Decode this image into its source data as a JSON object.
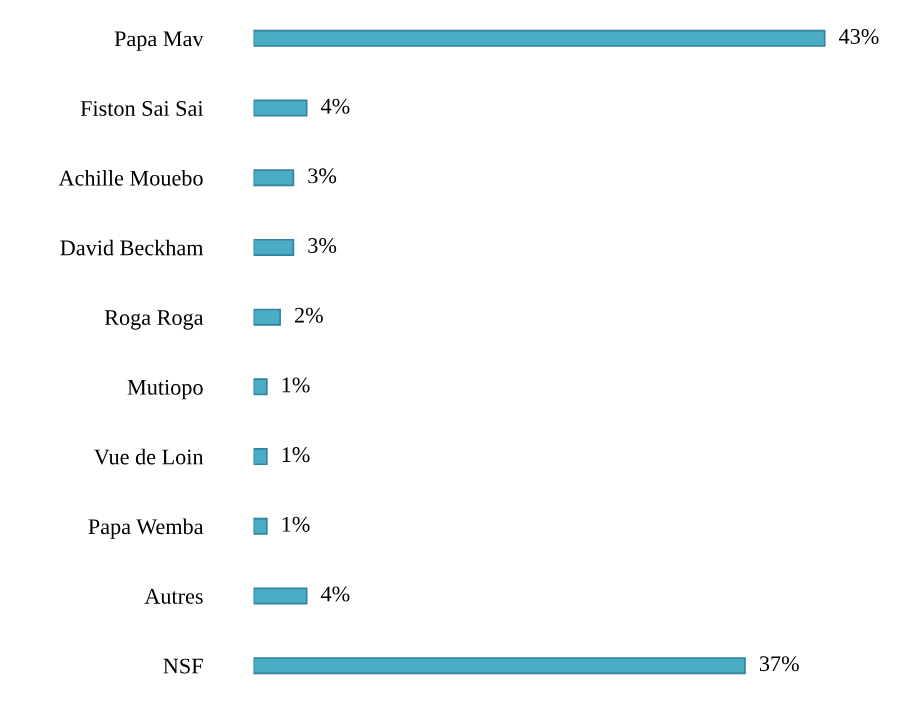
{
  "chart_data": {
    "type": "bar",
    "orientation": "horizontal",
    "categories": [
      "Papa Mav",
      "Fiston Sai Sai",
      "Achille Mouebo",
      "David Beckham",
      "Roga Roga",
      "Mutiopo",
      "Vue de Loin",
      "Papa Wemba",
      "Autres",
      "NSF"
    ],
    "values": [
      43,
      4,
      3,
      3,
      2,
      1,
      1,
      1,
      4,
      37
    ],
    "value_labels": [
      "43%",
      "4%",
      "3%",
      "3%",
      "2%",
      "1%",
      "1%",
      "1%",
      "4%",
      "37%"
    ],
    "color": "#4bacc6",
    "grid": false,
    "legend": false
  }
}
